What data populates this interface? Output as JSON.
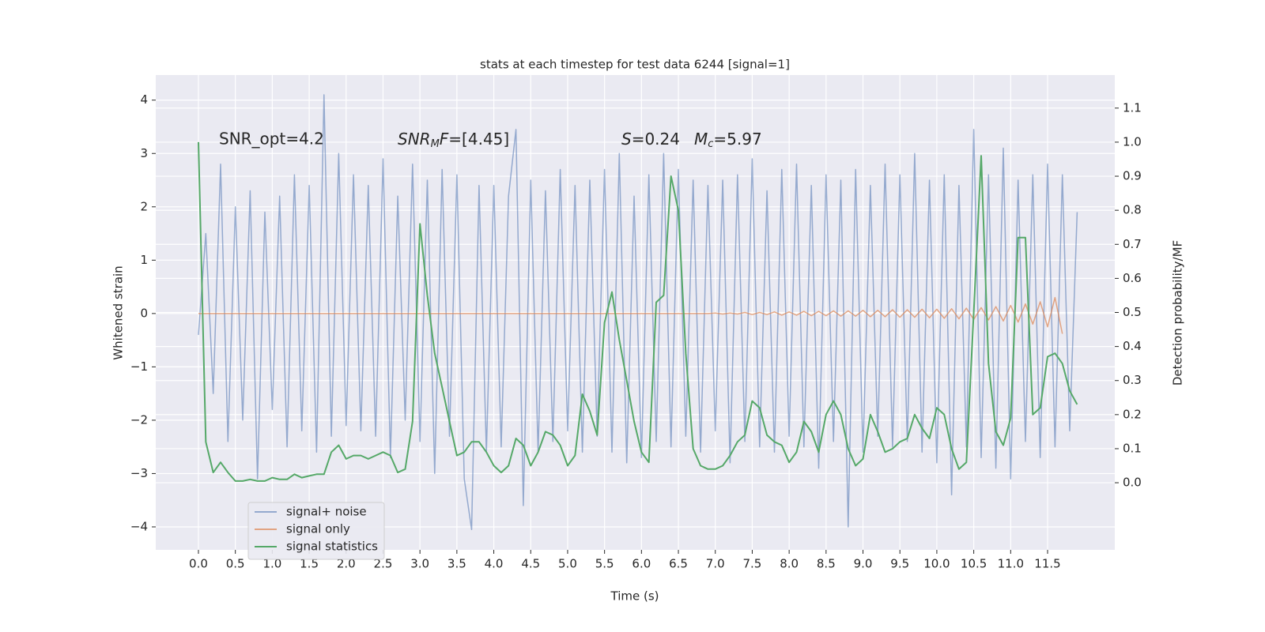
{
  "chart_data": {
    "type": "line",
    "title": "stats at each timestep for test data 6244 [signal=1]",
    "xlabel": "Time (s)",
    "ylabel": "Whitened strain",
    "y2label": "Detection probability/MF",
    "annotations": [
      [
        "SNR_opt=4.2"
      ],
      [
        "SNR",
        "M",
        "F",
        "=[4.45]"
      ],
      [
        "S",
        "=0.24",
        "M",
        "c",
        "=5.97"
      ]
    ],
    "x": [
      0,
      0.1,
      0.2,
      0.3,
      0.4,
      0.5,
      0.6,
      0.7,
      0.8,
      0.9,
      1.0,
      1.1,
      1.2,
      1.3,
      1.4,
      1.5,
      1.6,
      1.7,
      1.8,
      1.9,
      2.0,
      2.1,
      2.2,
      2.3,
      2.4,
      2.5,
      2.6,
      2.7,
      2.8,
      2.9,
      3.0,
      3.1,
      3.2,
      3.3,
      3.4,
      3.5,
      3.6,
      3.7,
      3.8,
      3.9,
      4.0,
      4.1,
      4.2,
      4.3,
      4.4,
      4.5,
      4.6,
      4.7,
      4.8,
      4.9,
      5.0,
      5.1,
      5.2,
      5.3,
      5.4,
      5.5,
      5.6,
      5.7,
      5.8,
      5.9,
      6.0,
      6.1,
      6.2,
      6.3,
      6.4,
      6.5,
      6.6,
      6.7,
      6.8,
      6.9,
      7.0,
      7.1,
      7.2,
      7.3,
      7.4,
      7.5,
      7.6,
      7.7,
      7.8,
      7.9,
      8.0,
      8.1,
      8.2,
      8.3,
      8.4,
      8.5,
      8.6,
      8.7,
      8.8,
      8.9,
      9.0,
      9.1,
      9.2,
      9.3,
      9.4,
      9.5,
      9.6,
      9.7,
      9.8,
      9.9,
      10.0,
      10.1,
      10.2,
      10.3,
      10.4,
      10.5,
      10.6,
      10.7,
      10.8,
      10.9,
      11.0,
      11.1,
      11.2,
      11.3,
      11.4,
      11.5,
      11.6,
      11.7,
      11.8,
      11.9
    ],
    "series": [
      {
        "name": "signal+ noise",
        "color": "#4c72b0",
        "axis": "y",
        "values": [
          -0.4,
          1.5,
          -1.5,
          2.8,
          -2.4,
          2.0,
          -2.0,
          2.3,
          -3.1,
          1.9,
          -1.8,
          2.2,
          -2.5,
          2.6,
          -2.2,
          2.4,
          -2.6,
          4.1,
          -2.3,
          3.0,
          -2.1,
          2.6,
          -2.2,
          2.4,
          -2.3,
          2.9,
          -2.7,
          2.2,
          -2.0,
          2.8,
          -2.4,
          2.5,
          -3.0,
          2.7,
          -2.3,
          2.6,
          -3.1,
          -4.05,
          2.4,
          -2.6,
          2.4,
          -2.5,
          2.2,
          3.45,
          -3.6,
          2.5,
          -2.6,
          2.3,
          -2.4,
          2.7,
          -2.2,
          2.4,
          -2.6,
          2.5,
          -2.3,
          2.7,
          -2.6,
          3.0,
          -2.8,
          2.2,
          -2.7,
          2.6,
          -2.4,
          3.0,
          -2.5,
          2.7,
          -2.3,
          2.5,
          -2.6,
          2.4,
          -2.2,
          2.5,
          -2.8,
          2.6,
          -2.4,
          2.9,
          -2.5,
          2.3,
          -2.6,
          2.7,
          -2.3,
          2.8,
          -2.5,
          2.4,
          -2.9,
          2.6,
          -2.4,
          2.5,
          -4.0,
          2.7,
          -2.6,
          2.4,
          -2.3,
          2.8,
          -2.5,
          2.6,
          -2.4,
          3.0,
          -2.6,
          2.5,
          -2.8,
          2.6,
          -3.4,
          2.4,
          -2.5,
          3.45,
          -2.7,
          2.6,
          -2.9,
          3.1,
          -3.1,
          2.5,
          -2.4,
          2.6,
          -2.7,
          2.8,
          -2.5,
          2.6,
          -2.2,
          1.9
        ]
      },
      {
        "name": "signal only",
        "color": "#dd8452",
        "axis": "y",
        "values": [
          0,
          0,
          0,
          0,
          0,
          0,
          0,
          0,
          0,
          0,
          0,
          0,
          0,
          0,
          0,
          0,
          0,
          0,
          0,
          0,
          0,
          0,
          0,
          0,
          0,
          0,
          0,
          0,
          0,
          0,
          0,
          0,
          0,
          0,
          0,
          0,
          0,
          0,
          0,
          0,
          0,
          0,
          0,
          0,
          0,
          0,
          0,
          0,
          0,
          0,
          0,
          0,
          0,
          0,
          0,
          0,
          0,
          0,
          0,
          0,
          0,
          0,
          0,
          0,
          0,
          0,
          0,
          0,
          0,
          0,
          0.01,
          -0.01,
          0.01,
          -0.01,
          0.02,
          -0.02,
          0.02,
          -0.02,
          0.03,
          -0.03,
          0.03,
          -0.03,
          0.04,
          -0.04,
          0.04,
          -0.04,
          0.05,
          -0.05,
          0.05,
          -0.05,
          0.06,
          -0.06,
          0.06,
          -0.06,
          0.07,
          -0.07,
          0.07,
          -0.07,
          0.08,
          -0.08,
          0.08,
          -0.09,
          0.09,
          -0.1,
          0.1,
          -0.11,
          0.11,
          -0.12,
          0.13,
          -0.14,
          0.15,
          -0.16,
          0.18,
          -0.2,
          0.22,
          -0.25,
          0.3,
          -0.38,
          null,
          null
        ]
      },
      {
        "name": "signal statistics",
        "color": "#55a868",
        "axis": "y2",
        "values": [
          1.0,
          0.12,
          0.03,
          0.06,
          0.03,
          0.005,
          0.005,
          0.01,
          0.005,
          0.005,
          0.015,
          0.01,
          0.01,
          0.025,
          0.015,
          0.02,
          0.025,
          0.025,
          0.09,
          0.11,
          0.07,
          0.08,
          0.08,
          0.07,
          0.08,
          0.09,
          0.08,
          0.03,
          0.04,
          0.18,
          0.76,
          0.55,
          0.38,
          0.28,
          0.18,
          0.08,
          0.09,
          0.12,
          0.12,
          0.09,
          0.05,
          0.03,
          0.05,
          0.13,
          0.11,
          0.05,
          0.09,
          0.15,
          0.14,
          0.11,
          0.05,
          0.08,
          0.26,
          0.21,
          0.14,
          0.47,
          0.56,
          0.42,
          0.3,
          0.18,
          0.09,
          0.06,
          0.53,
          0.55,
          0.9,
          0.8,
          0.38,
          0.1,
          0.05,
          0.04,
          0.04,
          0.05,
          0.08,
          0.12,
          0.14,
          0.24,
          0.22,
          0.14,
          0.12,
          0.11,
          0.06,
          0.09,
          0.18,
          0.15,
          0.09,
          0.2,
          0.24,
          0.2,
          0.1,
          0.05,
          0.07,
          0.2,
          0.15,
          0.09,
          0.1,
          0.12,
          0.13,
          0.2,
          0.16,
          0.13,
          0.22,
          0.2,
          0.1,
          0.04,
          0.06,
          0.5,
          0.96,
          0.35,
          0.15,
          0.11,
          0.19,
          0.72,
          0.72,
          0.2,
          0.22,
          0.37,
          0.38,
          0.35,
          0.27,
          0.23
        ]
      }
    ],
    "xlim": [
      -0.578,
      12.41
    ],
    "ylim": [
      -4.43,
      4.47
    ],
    "y2lim": [
      -0.197,
      1.197
    ],
    "xticks": [
      {
        "value": 0,
        "label": "0.0"
      },
      {
        "value": 0.5,
        "label": "0.5"
      },
      {
        "value": 1,
        "label": "1.0"
      },
      {
        "value": 1.5,
        "label": "1.5"
      },
      {
        "value": 2,
        "label": "2.0"
      },
      {
        "value": 2.5,
        "label": "2.5"
      },
      {
        "value": 3,
        "label": "3.0"
      },
      {
        "value": 3.5,
        "label": "3.5"
      },
      {
        "value": 4,
        "label": "4.0"
      },
      {
        "value": 4.5,
        "label": "4.5"
      },
      {
        "value": 5,
        "label": "5.0"
      },
      {
        "value": 5.5,
        "label": "5.5"
      },
      {
        "value": 6,
        "label": "6.0"
      },
      {
        "value": 6.5,
        "label": "6.5"
      },
      {
        "value": 7,
        "label": "7.0"
      },
      {
        "value": 7.5,
        "label": "7.5"
      },
      {
        "value": 8,
        "label": "8.0"
      },
      {
        "value": 8.5,
        "label": "8.5"
      },
      {
        "value": 9,
        "label": "9.0"
      },
      {
        "value": 9.5,
        "label": "9.5"
      },
      {
        "value": 10,
        "label": "10.0"
      },
      {
        "value": 10.5,
        "label": "10.5"
      },
      {
        "value": 11,
        "label": "11.0"
      },
      {
        "value": 11.5,
        "label": "11.5"
      }
    ],
    "yticks": [
      {
        "value": -4,
        "label": "−4"
      },
      {
        "value": -3,
        "label": "−3"
      },
      {
        "value": -2,
        "label": "−2"
      },
      {
        "value": -1,
        "label": "−1"
      },
      0,
      1,
      2,
      3,
      4
    ],
    "y2ticks": [
      {
        "value": 0,
        "label": "0.0"
      },
      {
        "value": 0.1,
        "label": "0.1"
      },
      {
        "value": 0.2,
        "label": "0.2"
      },
      {
        "value": 0.3,
        "label": "0.3"
      },
      {
        "value": 0.4,
        "label": "0.4"
      },
      {
        "value": 0.5,
        "label": "0.5"
      },
      {
        "value": 0.6,
        "label": "0.6"
      },
      {
        "value": 0.7,
        "label": "0.7"
      },
      {
        "value": 0.8,
        "label": "0.8"
      },
      {
        "value": 0.9,
        "label": "0.9"
      },
      {
        "value": 1,
        "label": "1.0"
      },
      {
        "value": 1.1,
        "label": "1.1"
      }
    ],
    "grid": true,
    "legend": "lower left",
    "background": "#eaeaf2"
  }
}
